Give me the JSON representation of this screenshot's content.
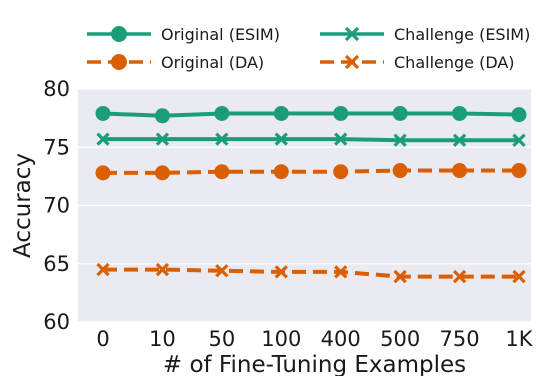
{
  "chart_data": {
    "type": "line",
    "title": "",
    "xlabel": "# of Fine-Tuning Examples",
    "ylabel": "Accuracy",
    "categories": [
      "0",
      "10",
      "50",
      "100",
      "400",
      "500",
      "750",
      "1K"
    ],
    "ylim": [
      60,
      80
    ],
    "yticks": [
      "60",
      "65",
      "70",
      "75",
      "80"
    ],
    "grid": true,
    "legend_position": "top",
    "series": [
      {
        "name": "Original (ESIM)",
        "values": [
          77.9,
          77.7,
          77.9,
          77.9,
          77.9,
          77.9,
          77.9,
          77.8
        ],
        "color": "#1b9e77",
        "marker": "circle",
        "style": "solid"
      },
      {
        "name": "Challenge (ESIM)",
        "values": [
          75.7,
          75.7,
          75.7,
          75.7,
          75.7,
          75.6,
          75.6,
          75.6
        ],
        "color": "#1b9e77",
        "marker": "x",
        "style": "solid"
      },
      {
        "name": "Original (DA)",
        "values": [
          72.8,
          72.8,
          72.9,
          72.9,
          72.9,
          73.0,
          73.0,
          73.0
        ],
        "color": "#d95f02",
        "marker": "circle",
        "style": "dashed"
      },
      {
        "name": "Challenge (DA)",
        "values": [
          64.5,
          64.5,
          64.4,
          64.3,
          64.3,
          63.9,
          63.9,
          63.9
        ],
        "color": "#d95f02",
        "marker": "x",
        "style": "dashed"
      }
    ],
    "background": "#eaeaf2"
  }
}
